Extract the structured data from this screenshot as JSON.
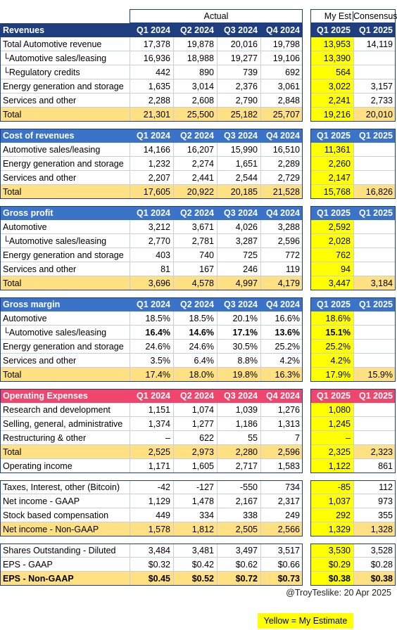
{
  "top_header": {
    "actual": "Actual",
    "my_est": "My Est",
    "consensus": "Consensus"
  },
  "colors": {
    "blue_header": "#1f3e80",
    "mid_blue_header": "#3b73c9",
    "pink_header": "#f0466e",
    "total_band": "#ffe083",
    "estimate_yellow": "#ffff00"
  },
  "columns": [
    "Q1 2024",
    "Q2 2024",
    "Q3 2024",
    "Q4 2024",
    "Q1 2025",
    "Q1 2025"
  ],
  "sections": [
    {
      "title": "Revenues",
      "header_color": "#1f3e80",
      "rows": [
        {
          "label": "Total Automotive revenue",
          "values": [
            "17,378",
            "19,878",
            "20,016",
            "19,798",
            "13,953",
            "14,119"
          ]
        },
        {
          "label": "└Automotive sales/leasing",
          "values": [
            "16,936",
            "18,988",
            "19,277",
            "19,106",
            "13,390",
            ""
          ]
        },
        {
          "label": "└Regulatory credits",
          "values": [
            "442",
            "890",
            "739",
            "692",
            "564",
            ""
          ]
        },
        {
          "label": "Energy generation and storage",
          "values": [
            "1,635",
            "3,014",
            "2,376",
            "3,061",
            "3,022",
            "3,157"
          ]
        },
        {
          "label": "Services and other",
          "values": [
            "2,288",
            "2,608",
            "2,790",
            "2,848",
            "2,241",
            "2,733"
          ]
        },
        {
          "label": "Total",
          "values": [
            "21,301",
            "25,500",
            "25,182",
            "25,707",
            "19,216",
            "20,010"
          ],
          "total": true
        }
      ]
    },
    {
      "title": "Cost of revenues",
      "header_color": "#3b73c9",
      "rows": [
        {
          "label": "Automotive sales/leasing",
          "values": [
            "14,166",
            "16,207",
            "15,990",
            "16,510",
            "11,361",
            ""
          ]
        },
        {
          "label": "Energy generation and storage",
          "values": [
            "1,232",
            "2,274",
            "1,651",
            "2,289",
            "2,260",
            ""
          ]
        },
        {
          "label": "Services and other",
          "values": [
            "2,207",
            "2,441",
            "2,544",
            "2,729",
            "2,147",
            ""
          ]
        },
        {
          "label": "Total",
          "values": [
            "17,605",
            "20,922",
            "20,185",
            "21,528",
            "15,768",
            "16,826"
          ],
          "total": true
        }
      ]
    },
    {
      "title": "Gross profit",
      "header_color": "#3b73c9",
      "rows": [
        {
          "label": "Automotive",
          "values": [
            "3,212",
            "3,671",
            "4,026",
            "3,288",
            "2,592",
            ""
          ]
        },
        {
          "label": "└Automotive sales/leasing",
          "values": [
            "2,770",
            "2,781",
            "3,287",
            "2,596",
            "2,028",
            ""
          ]
        },
        {
          "label": "Energy generation and storage",
          "values": [
            "403",
            "740",
            "725",
            "772",
            "762",
            ""
          ]
        },
        {
          "label": "Services and other",
          "values": [
            "81",
            "167",
            "246",
            "119",
            "94",
            ""
          ]
        },
        {
          "label": "Total",
          "values": [
            "3,696",
            "4,578",
            "4,997",
            "4,179",
            "3,447",
            "3,184"
          ],
          "total": true
        }
      ]
    },
    {
      "title": "Gross margin",
      "header_color": "#3b73c9",
      "rows": [
        {
          "label": "Automotive",
          "values": [
            "18.5%",
            "18.5%",
            "20.1%",
            "16.6%",
            "18.6%",
            ""
          ]
        },
        {
          "label": "└Automotive sales/leasing",
          "values": [
            "16.4%",
            "14.6%",
            "17.1%",
            "13.6%",
            "15.1%",
            ""
          ],
          "bold": true
        },
        {
          "label": "Energy generation and storage",
          "values": [
            "24.6%",
            "24.6%",
            "30.5%",
            "25.2%",
            "25.2%",
            ""
          ]
        },
        {
          "label": "Services and other",
          "values": [
            "3.5%",
            "6.4%",
            "8.8%",
            "4.2%",
            "4.2%",
            ""
          ]
        },
        {
          "label": "Total",
          "values": [
            "17.4%",
            "18.0%",
            "19.8%",
            "16.3%",
            "17.9%",
            "15.9%"
          ],
          "total": true
        }
      ]
    },
    {
      "title": "Operating Expenses",
      "header_color": "#f0466e",
      "rows": [
        {
          "label": "Research and development",
          "values": [
            "1,151",
            "1,074",
            "1,039",
            "1,276",
            "1,080",
            ""
          ]
        },
        {
          "label": "Selling, general, administrative",
          "values": [
            "1,374",
            "1,277",
            "1,186",
            "1,313",
            "1,245",
            ""
          ]
        },
        {
          "label": "Restructuring & other",
          "values": [
            "–",
            "622",
            "55",
            "7",
            "–",
            ""
          ]
        },
        {
          "label": "Total",
          "values": [
            "2,525",
            "2,973",
            "2,280",
            "2,596",
            "2,325",
            "2,323"
          ],
          "total": true
        },
        {
          "label": "Operating income",
          "values": [
            "1,171",
            "1,605",
            "2,717",
            "1,583",
            "1,122",
            "861"
          ]
        }
      ]
    },
    {
      "title": "",
      "header_color": "",
      "rows": [
        {
          "label": "Taxes, Interest, other (Bitcoin)",
          "values": [
            "-42",
            "-127",
            "-550",
            "734",
            "-85",
            "112"
          ]
        },
        {
          "label": "Net income - GAAP",
          "values": [
            "1,129",
            "1,478",
            "2,167",
            "2,317",
            "1,037",
            "973"
          ]
        },
        {
          "label": "Stock based compensation",
          "values": [
            "449",
            "334",
            "338",
            "249",
            "292",
            "355"
          ]
        },
        {
          "label": "Net income - Non-GAAP",
          "values": [
            "1,578",
            "1,812",
            "2,505",
            "2,566",
            "1,329",
            "1,328"
          ],
          "total": true
        }
      ]
    },
    {
      "title": "",
      "header_color": "",
      "rows": [
        {
          "label": "Shares Outstanding - Diluted",
          "values": [
            "3,484",
            "3,481",
            "3,497",
            "3,517",
            "3,530",
            "3,528"
          ]
        },
        {
          "label": "EPS - GAAP",
          "values": [
            "$0.32",
            "$0.42",
            "$0.62",
            "$0.66",
            "$0.29",
            "$0.28"
          ]
        },
        {
          "label": "EPS - Non-GAAP",
          "values": [
            "$0.45",
            "$0.52",
            "$0.72",
            "$0.73",
            "$0.38",
            "$0.38"
          ],
          "total": true,
          "bold": true
        }
      ]
    }
  ],
  "footer": {
    "credit": "@TroyTeslike: 20 Apr 2025",
    "legend": "Yellow = My Estimate"
  }
}
